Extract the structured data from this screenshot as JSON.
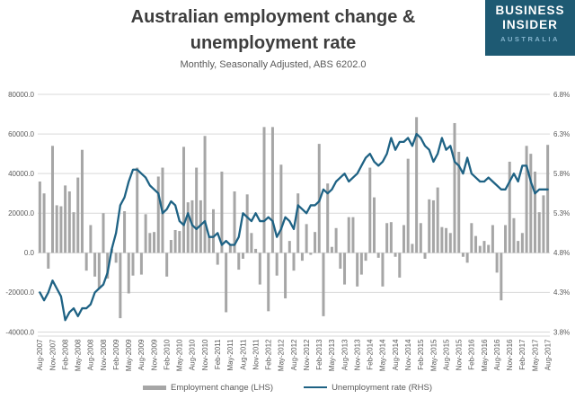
{
  "header": {
    "title_line1": "Australian employment change &",
    "title_line2": "unemployment rate",
    "subtitle": "Monthly, Seasonally Adjusted, ABS 6202.0"
  },
  "logo": {
    "line1": "BUSINESS",
    "line2": "INSIDER",
    "line3": "AUSTRALIA"
  },
  "legend": [
    {
      "label": "Employment change (LHS)",
      "swatch": "bar",
      "color": "#a6a6a6"
    },
    {
      "label": "Unemployment rate (RHS)",
      "swatch": "line",
      "color": "#1e6284"
    }
  ],
  "colors": {
    "title": "#3d3d3d",
    "axis_text": "#595959",
    "grid": "#d9d9d9",
    "bar": "#a6a6a6",
    "line": "#1e6284",
    "logo_bg": "#1e5a73",
    "logo_accent": "#85b4cd",
    "background": "#ffffff"
  },
  "chart_data": {
    "type": "bar+line",
    "title": "Australian employment change & unemployment rate",
    "subtitle": "Monthly, Seasonally Adjusted, ABS 6202.0",
    "grid": true,
    "legend_position": "bottom",
    "x_tick_labels": [
      "Aug-2007",
      "Nov-2007",
      "Feb-2008",
      "May-2008",
      "Aug-2008",
      "Nov-2008",
      "Feb-2009",
      "May-2009",
      "Aug-2009",
      "Nov-2009",
      "Feb-2010",
      "May-2010",
      "Aug-2010",
      "Nov-2010",
      "Feb-2011",
      "May-2011",
      "Aug-2011",
      "Nov-2011",
      "Feb-2012",
      "May-2012",
      "Aug-2012",
      "Nov-2012",
      "Feb-2013",
      "May-2013",
      "Aug-2013",
      "Nov-2013",
      "Feb-2014",
      "May-2014",
      "Aug-2014",
      "Nov-2014",
      "Feb-2015",
      "May-2015",
      "Aug-2015",
      "Nov-2015",
      "Feb-2016",
      "May-2016",
      "Aug-2016",
      "Nov-2016",
      "Feb-2017",
      "May-2017",
      "Aug-2017"
    ],
    "left_axis": {
      "min": -40000,
      "max": 80000,
      "tick_labels": [
        "80000.0",
        "60000.0",
        "40000.0",
        "20000.0",
        "0.0",
        "-20000.0",
        "-40000.0"
      ]
    },
    "right_axis": {
      "min": 3.8,
      "max": 6.8,
      "tick_labels": [
        "6.8%",
        "6.3%",
        "5.8%",
        "5.3%",
        "4.8%",
        "4.3%",
        "3.8%"
      ]
    },
    "series": [
      {
        "name": "Employment change (LHS)",
        "type": "bar",
        "axis": "left",
        "color": "#a6a6a6",
        "values": [
          36000,
          30000,
          -8000,
          54000,
          24000,
          23500,
          34000,
          31000,
          20500,
          38000,
          52000,
          -9000,
          14000,
          -12000,
          -18000,
          20000,
          -13000,
          2000,
          -5000,
          -33000,
          21000,
          -20500,
          -11500,
          43000,
          -11000,
          19500,
          10000,
          10500,
          38500,
          43000,
          -12000,
          6500,
          11500,
          11000,
          53500,
          25500,
          26500,
          43000,
          26500,
          59000,
          8000,
          22000,
          -6000,
          41000,
          -30000,
          4000,
          31000,
          -8500,
          -3000,
          29500,
          10000,
          2000,
          -16000,
          63500,
          -29500,
          63500,
          -11500,
          44500,
          -23000,
          6000,
          -9000,
          30000,
          -4000,
          14500,
          -1000,
          10500,
          55000,
          -32000,
          35000,
          3000,
          12500,
          -8000,
          -16000,
          18000,
          18000,
          -17000,
          -11000,
          -4000,
          43000,
          28000,
          -2500,
          -17000,
          15000,
          15500,
          -2000,
          -12500,
          14000,
          47500,
          4500,
          68500,
          15000,
          -3000,
          27000,
          26500,
          33000,
          13000,
          12500,
          10000,
          65500,
          51000,
          -2000,
          -5000,
          15000,
          8500,
          3500,
          6000,
          4000,
          14000,
          -10000,
          -24000,
          14000,
          46000,
          17500,
          6000,
          10000,
          54000,
          50000,
          41000,
          20500,
          29000,
          54500
        ]
      },
      {
        "name": "Unemployment rate (RHS)",
        "type": "line",
        "axis": "right",
        "color": "#1e6284",
        "values": [
          4.3,
          4.2,
          4.3,
          4.45,
          4.35,
          4.25,
          3.95,
          4.05,
          4.1,
          4.0,
          4.1,
          4.1,
          4.15,
          4.3,
          4.35,
          4.4,
          4.55,
          4.85,
          5.05,
          5.4,
          5.5,
          5.7,
          5.85,
          5.85,
          5.8,
          5.75,
          5.65,
          5.6,
          5.55,
          5.3,
          5.35,
          5.45,
          5.4,
          5.2,
          5.15,
          5.3,
          5.15,
          5.1,
          5.15,
          5.2,
          5.0,
          5.0,
          5.05,
          4.9,
          4.95,
          4.9,
          4.9,
          5.0,
          5.3,
          5.25,
          5.2,
          5.3,
          5.2,
          5.2,
          5.25,
          5.2,
          5.0,
          5.1,
          5.25,
          5.2,
          5.1,
          5.4,
          5.35,
          5.3,
          5.4,
          5.4,
          5.45,
          5.6,
          5.55,
          5.6,
          5.7,
          5.75,
          5.8,
          5.7,
          5.75,
          5.8,
          5.9,
          6.0,
          6.05,
          5.95,
          5.9,
          5.95,
          6.05,
          6.25,
          6.1,
          6.2,
          6.2,
          6.25,
          6.15,
          6.3,
          6.25,
          6.15,
          6.1,
          5.95,
          6.05,
          6.25,
          6.1,
          6.15,
          5.95,
          5.9,
          5.8,
          6.0,
          5.8,
          5.75,
          5.7,
          5.7,
          5.75,
          5.7,
          5.65,
          5.6,
          5.6,
          5.7,
          5.8,
          5.7,
          5.9,
          5.9,
          5.7,
          5.55,
          5.6,
          5.6,
          5.6
        ]
      }
    ]
  }
}
